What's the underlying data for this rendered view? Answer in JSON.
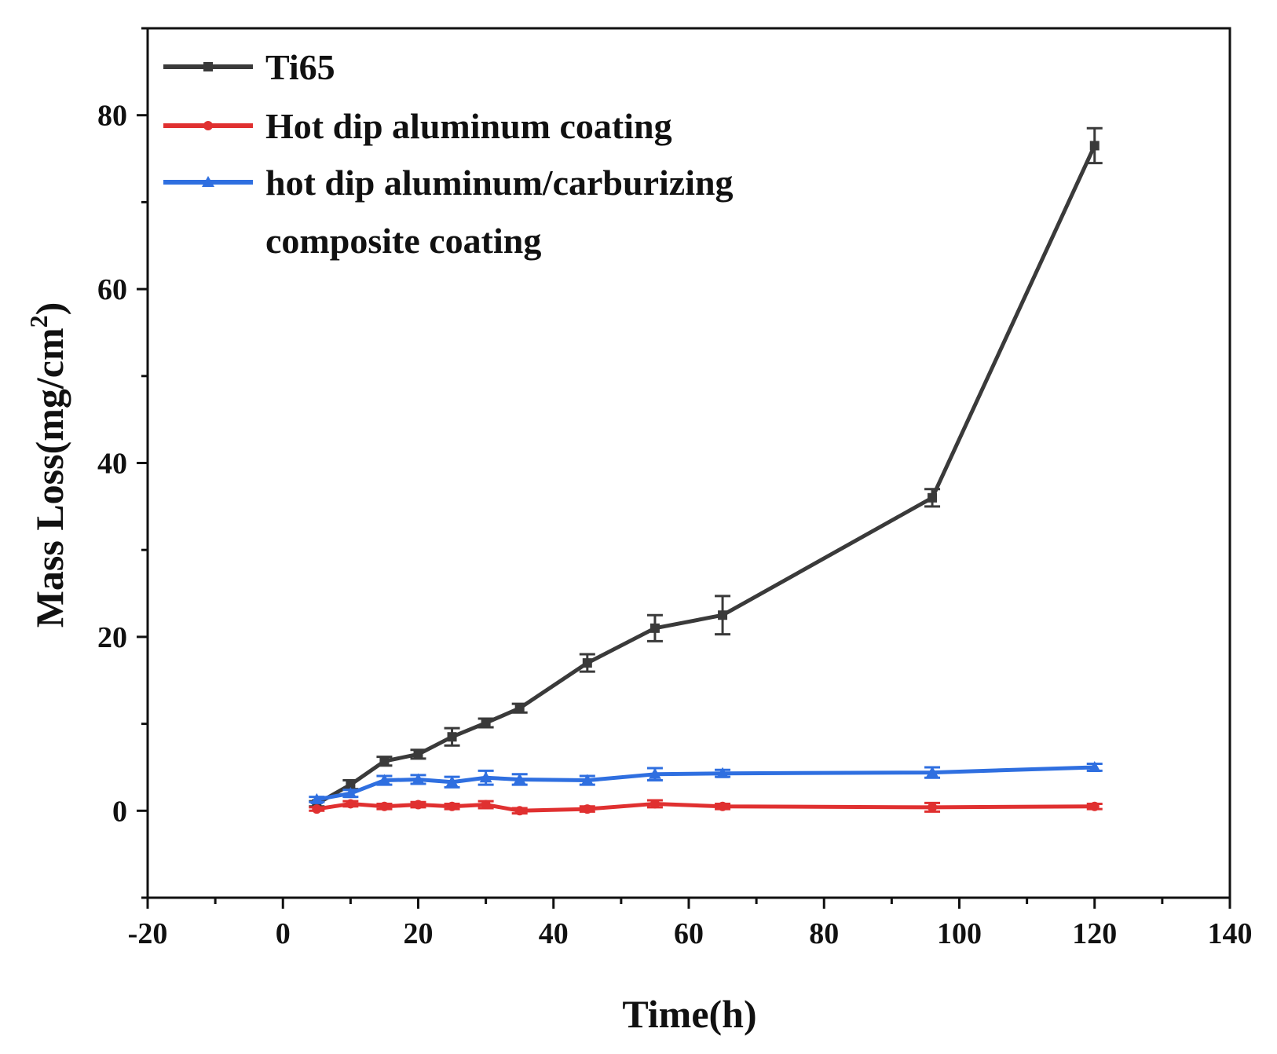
{
  "chart_data": {
    "type": "line",
    "xlabel": "Time(h)",
    "ylabel": "Mass Loss(mg/cm",
    "ylabel_superscript": "2",
    "ylabel_suffix": ")",
    "xlim": [
      -20,
      140
    ],
    "ylim": [
      -10,
      90
    ],
    "xticks": [
      "-20",
      "0",
      "20",
      "40",
      "60",
      "80",
      "100",
      "120",
      "140"
    ],
    "xtick_values": [
      -20,
      0,
      20,
      40,
      60,
      80,
      100,
      120,
      140
    ],
    "yticks": [
      "0",
      "20",
      "40",
      "60",
      "80"
    ],
    "ytick_values": [
      0,
      20,
      40,
      60,
      80
    ],
    "legend_position": "top-left",
    "series": [
      {
        "name": "Ti65",
        "color": "#3a3a3a",
        "marker": "square",
        "x": [
          5,
          10,
          15,
          20,
          25,
          30,
          35,
          45,
          55,
          65,
          96,
          120
        ],
        "y": [
          0.8,
          3.0,
          5.7,
          6.5,
          8.5,
          10.1,
          11.8,
          17.0,
          21.0,
          22.5,
          36.0,
          76.5
        ],
        "err": [
          0.3,
          0.5,
          0.5,
          0.5,
          1.0,
          0.5,
          0.5,
          1.0,
          1.5,
          2.2,
          1.0,
          2.0
        ]
      },
      {
        "name": "Hot dip aluminum coating",
        "color": "#e03030",
        "marker": "circle",
        "x": [
          5,
          10,
          15,
          20,
          25,
          30,
          35,
          45,
          55,
          65,
          96,
          120
        ],
        "y": [
          0.2,
          0.8,
          0.5,
          0.7,
          0.5,
          0.7,
          0.0,
          0.2,
          0.8,
          0.5,
          0.4,
          0.5
        ],
        "err": [
          0.2,
          0.3,
          0.3,
          0.3,
          0.3,
          0.4,
          0.3,
          0.3,
          0.4,
          0.3,
          0.5,
          0.3
        ]
      },
      {
        "name": "hot dip aluminum/carburizing composite coating",
        "legend_lines": [
          "hot dip aluminum/carburizing",
          "composite coating"
        ],
        "color": "#2f6fe0",
        "marker": "triangle",
        "x": [
          5,
          10,
          15,
          20,
          25,
          30,
          35,
          45,
          55,
          65,
          96,
          120
        ],
        "y": [
          1.3,
          2.0,
          3.5,
          3.6,
          3.3,
          3.8,
          3.6,
          3.5,
          4.2,
          4.3,
          4.4,
          5.0
        ],
        "err": [
          0.3,
          0.4,
          0.5,
          0.5,
          0.6,
          0.8,
          0.6,
          0.5,
          0.7,
          0.4,
          0.6,
          0.4
        ]
      }
    ]
  }
}
